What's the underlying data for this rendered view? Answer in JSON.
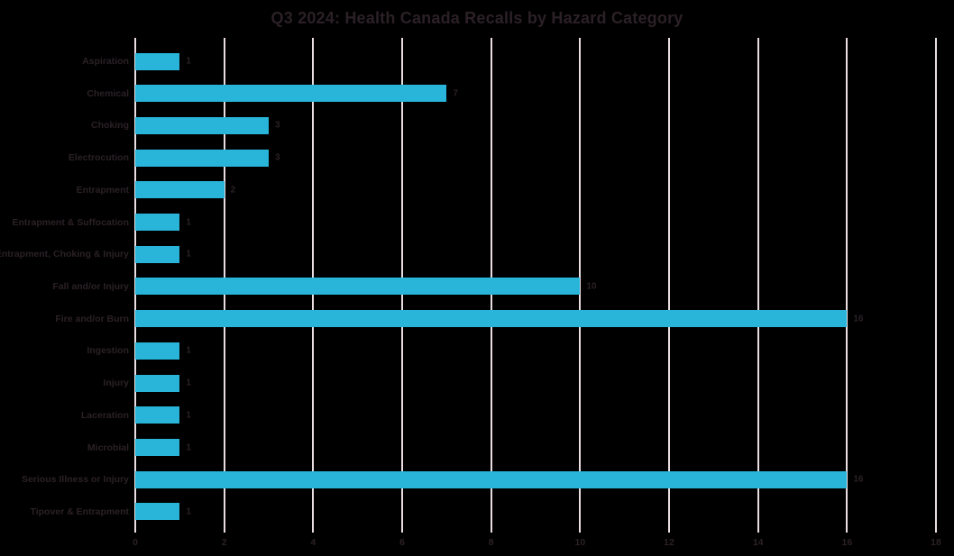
{
  "chart_data": {
    "type": "bar",
    "orientation": "horizontal",
    "title": "Q3 2024: Health Canada Recalls by Hazard Category",
    "categories": [
      "Aspiration",
      "Chemical",
      "Choking",
      "Electrocution",
      "Entrapment",
      "Entrapment & Suffocation",
      "Entrapment, Choking & Injury",
      "Fall and/or Injury",
      "Fire and/or Burn",
      "Ingestion",
      "Injury",
      "Laceration",
      "Microbial",
      "Serious Illness or Injury",
      "Tipover & Entrapment"
    ],
    "values": [
      1,
      7,
      3,
      3,
      2,
      1,
      1,
      10,
      16,
      1,
      1,
      1,
      1,
      16,
      1
    ],
    "data_labels": [
      "1",
      "7",
      "3",
      "3",
      "2",
      "1",
      "1",
      "10",
      "16",
      "1",
      "1",
      "1",
      "1",
      "16",
      "1"
    ],
    "xlabel": "",
    "ylabel": "",
    "xlim": [
      0,
      18
    ],
    "xticks": [
      0,
      2,
      4,
      6,
      8,
      10,
      12,
      14,
      16,
      18
    ],
    "grid": "vertical-only",
    "legend": "none",
    "colors": {
      "bar": "#28b5d9",
      "gridline": "#eadde2",
      "text": "#2b2026",
      "background": "#000000"
    }
  }
}
